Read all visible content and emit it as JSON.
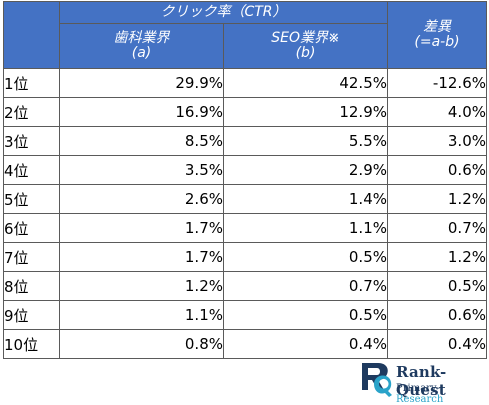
{
  "header": {
    "group_label": "クリック率（CTR）",
    "col_a_line1": "歯科業界",
    "col_a_line2": "(a)",
    "col_b_line1": "SEO業界※",
    "col_b_line2": "(b)",
    "diff_line1": "差異",
    "diff_line2": "(=a-b)"
  },
  "rows": [
    {
      "rank": "1位",
      "a": "29.9%",
      "b": "42.5%",
      "diff": "-12.6%"
    },
    {
      "rank": "2位",
      "a": "16.9%",
      "b": "12.9%",
      "diff": "4.0%"
    },
    {
      "rank": "3位",
      "a": "8.5%",
      "b": "5.5%",
      "diff": "3.0%"
    },
    {
      "rank": "4位",
      "a": "3.5%",
      "b": "2.9%",
      "diff": "0.6%"
    },
    {
      "rank": "5位",
      "a": "2.6%",
      "b": "1.4%",
      "diff": "1.2%"
    },
    {
      "rank": "6位",
      "a": "1.7%",
      "b": "1.1%",
      "diff": "0.7%"
    },
    {
      "rank": "7位",
      "a": "1.7%",
      "b": "0.5%",
      "diff": "1.2%"
    },
    {
      "rank": "8位",
      "a": "1.2%",
      "b": "0.7%",
      "diff": "0.5%"
    },
    {
      "rank": "9位",
      "a": "1.1%",
      "b": "0.5%",
      "diff": "0.6%"
    },
    {
      "rank": "10位",
      "a": "0.8%",
      "b": "0.4%",
      "diff": "0.4%"
    }
  ],
  "logo": {
    "name": "Rank-Quest",
    "sub_part1": "Primary-",
    "sub_part2": "Research"
  },
  "colors": {
    "header_bg": "#4472c4",
    "header_text": "#ffffff",
    "logo_dark": "#1e3a5f",
    "logo_accent": "#2aa3c9"
  }
}
